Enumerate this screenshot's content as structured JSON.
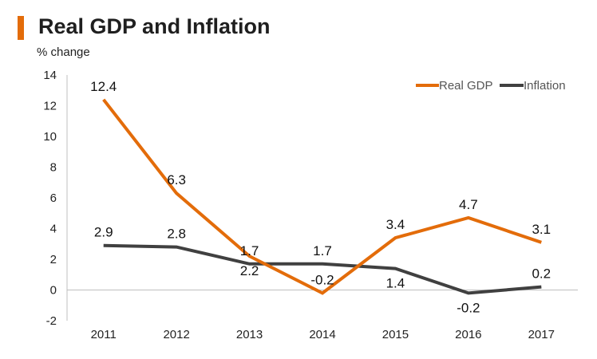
{
  "header": {
    "title": "Real GDP and Inflation",
    "subtitle": "% change",
    "accent_color": "#e36c0a"
  },
  "chart_data": {
    "type": "line",
    "title": "Real GDP and Inflation",
    "ylabel": "% change",
    "xlabel": "",
    "categories": [
      "2011",
      "2012",
      "2013",
      "2014",
      "2015",
      "2016",
      "2017"
    ],
    "ylim": [
      -2,
      14
    ],
    "yticks": [
      -2,
      0,
      2,
      4,
      6,
      8,
      10,
      12,
      14
    ],
    "ytick_labels": [
      "-2",
      "0",
      "2",
      "4",
      "6",
      "8",
      "10",
      "12",
      "14"
    ],
    "grid": false,
    "legend_position": "top-right",
    "series": [
      {
        "name": "Real GDP",
        "color": "#e36c0a",
        "values": [
          12.4,
          6.3,
          2.2,
          -0.2,
          3.4,
          4.7,
          3.1
        ],
        "labels": [
          "12.4",
          "6.3",
          "2.2",
          "-0.2",
          "3.4",
          "4.7",
          "3.1"
        ],
        "label_side": [
          "above",
          "above",
          "below",
          "above",
          "above",
          "above",
          "above"
        ]
      },
      {
        "name": "Inflation",
        "color": "#404040",
        "values": [
          2.9,
          2.8,
          1.7,
          1.7,
          1.4,
          -0.2,
          0.2
        ],
        "labels": [
          "2.9",
          "2.8",
          "1.7",
          "1.7",
          "1.4",
          "-0.2",
          "0.2"
        ],
        "label_side": [
          "above",
          "above",
          "above",
          "above",
          "below",
          "below",
          "above"
        ]
      }
    ]
  }
}
